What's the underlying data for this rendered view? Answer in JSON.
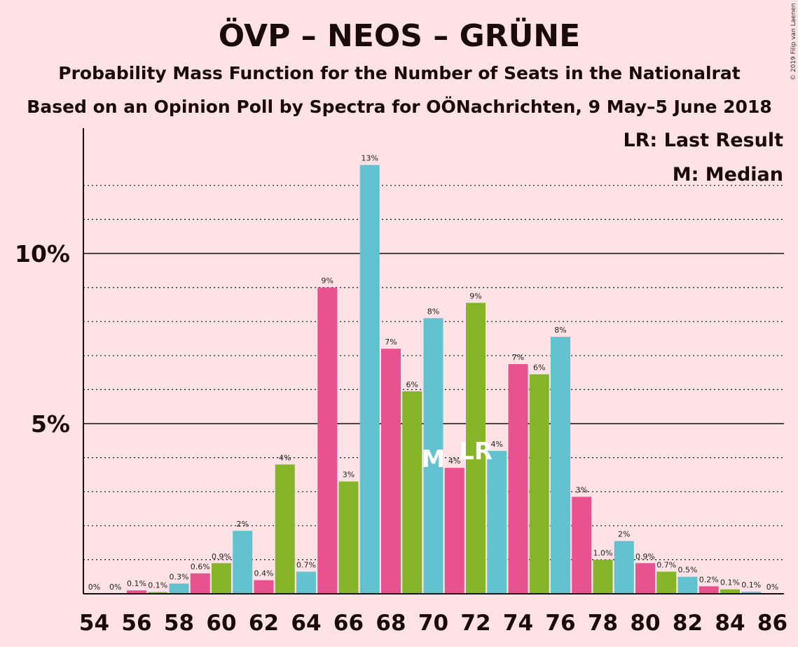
{
  "title": "ÖVP – NEOS – GRÜNE",
  "subtitle1": "Probability Mass Function for the Number of Seats in the Nationalrat",
  "subtitle2": "Based on an Opinion Poll by Spectra for OÖNachrichten, 9 May–5 June 2018",
  "copyright": "© 2019 Filip van Laenen",
  "legend": {
    "lr": "LR: Last Result",
    "m": "M: Median"
  },
  "colors": {
    "background": "#ffe2e6",
    "green": "#87b52a",
    "cyan": "#62c2d0",
    "pink": "#e8528e"
  },
  "chart_data": {
    "type": "bar",
    "x": [
      54,
      55,
      56,
      57,
      58,
      59,
      60,
      61,
      62,
      63,
      64,
      65,
      66,
      67,
      68,
      69,
      70,
      71,
      72,
      73,
      74,
      75,
      76,
      77,
      78,
      79,
      80,
      81,
      82,
      83,
      84,
      85,
      86
    ],
    "values": [
      0,
      0,
      0.1,
      0.05,
      0.3,
      0.6,
      0.9,
      1.85,
      0.4,
      3.8,
      0.65,
      9.0,
      3.3,
      12.6,
      7.2,
      5.95,
      8.1,
      3.7,
      8.55,
      4.2,
      6.75,
      6.45,
      7.55,
      2.85,
      1.0,
      1.55,
      0.9,
      0.65,
      0.5,
      0.22,
      0.13,
      0.06,
      0
    ],
    "labels": [
      "0%",
      "0%",
      "0.1%",
      "0.1%",
      "0.3%",
      "0.6%",
      "0.9%",
      "2%",
      "0.4%",
      "4%",
      "0.7%",
      "9%",
      "3%",
      "13%",
      "7%",
      "6%",
      "8%",
      "4%",
      "9%",
      "4%",
      "7%",
      "6%",
      "8%",
      "3%",
      "1.0%",
      "2%",
      "0.9%",
      "0.7%",
      "0.5%",
      "0.2%",
      "0.1%",
      "0.1%",
      "0%"
    ],
    "color_cycle": [
      "green",
      "cyan",
      "pink"
    ],
    "x_tick_labels": [
      "54",
      "56",
      "58",
      "60",
      "62",
      "64",
      "66",
      "68",
      "70",
      "72",
      "74",
      "76",
      "78",
      "80",
      "82",
      "84",
      "86"
    ],
    "y_tick_labels": [
      {
        "value": 5,
        "label": "5%"
      },
      {
        "value": 10,
        "label": "10%"
      }
    ],
    "ylim": [
      0,
      13.7
    ],
    "median": {
      "seat": 70,
      "label": "M"
    },
    "last_result": {
      "seat": 72,
      "label": "LR"
    },
    "grid": "dotted every 1%, solid at 5% and 10%"
  }
}
